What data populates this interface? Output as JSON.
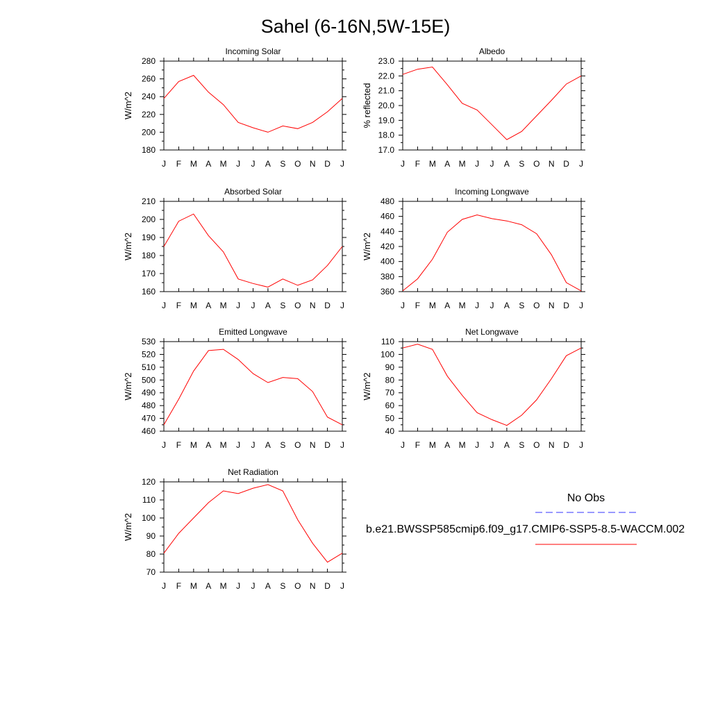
{
  "title": "Sahel (6-16N,5W-15E)",
  "months": [
    "J",
    "F",
    "M",
    "A",
    "M",
    "J",
    "J",
    "A",
    "S",
    "O",
    "N",
    "D",
    "J"
  ],
  "legend": {
    "items": [
      {
        "label": "No Obs",
        "color": "#3333ff",
        "style": "dashed"
      },
      {
        "label": "b.e21.BWSSP585cmip6.f09_g17.CMIP6-SSP5-8.5-WACCM.002",
        "color": "#ff0000",
        "style": "solid"
      }
    ]
  },
  "chart_data": [
    {
      "type": "line",
      "title": "Incoming Solar",
      "ylabel": "W/m^2",
      "x": [
        "J",
        "F",
        "M",
        "A",
        "M",
        "J",
        "J",
        "A",
        "S",
        "O",
        "N",
        "D",
        "J"
      ],
      "ylim": [
        180,
        280
      ],
      "yticks": [
        180,
        200,
        220,
        240,
        260,
        280
      ],
      "yfmt": 0,
      "series": [
        {
          "values": [
            238,
            257,
            264,
            245,
            231,
            211,
            205,
            200,
            207,
            204,
            211,
            223,
            238
          ]
        }
      ]
    },
    {
      "type": "line",
      "title": "Albedo",
      "ylabel": "% reflected",
      "x": [
        "J",
        "F",
        "M",
        "A",
        "M",
        "J",
        "J",
        "A",
        "S",
        "O",
        "N",
        "D",
        "J"
      ],
      "ylim": [
        17.0,
        23.0
      ],
      "yticks": [
        17.0,
        18.0,
        19.0,
        20.0,
        21.0,
        22.0,
        23.0
      ],
      "yfmt": 1,
      "series": [
        {
          "values": [
            22.1,
            22.45,
            22.6,
            21.4,
            20.15,
            19.7,
            18.7,
            17.7,
            18.25,
            19.3,
            20.35,
            21.45,
            22.0
          ]
        }
      ]
    },
    {
      "type": "line",
      "title": "Absorbed Solar",
      "ylabel": "W/m^2",
      "x": [
        "J",
        "F",
        "M",
        "A",
        "M",
        "J",
        "J",
        "A",
        "S",
        "O",
        "N",
        "D",
        "J"
      ],
      "ylim": [
        160,
        210
      ],
      "yticks": [
        160,
        170,
        180,
        190,
        200,
        210
      ],
      "yfmt": 0,
      "series": [
        {
          "values": [
            185,
            199,
            203,
            191,
            182,
            167,
            164.5,
            162.5,
            167,
            163.5,
            166.5,
            174.5,
            185
          ]
        }
      ]
    },
    {
      "type": "line",
      "title": "Incoming Longwave",
      "ylabel": "W/m^2",
      "x": [
        "J",
        "F",
        "M",
        "A",
        "M",
        "J",
        "J",
        "A",
        "S",
        "O",
        "N",
        "D",
        "J"
      ],
      "ylim": [
        360,
        480
      ],
      "yticks": [
        360,
        380,
        400,
        420,
        440,
        460,
        480
      ],
      "yfmt": 0,
      "series": [
        {
          "values": [
            361,
            377,
            403,
            439,
            456,
            462,
            457,
            454,
            449,
            437,
            409,
            372,
            361
          ]
        }
      ]
    },
    {
      "type": "line",
      "title": "Emitted Longwave",
      "ylabel": "W/m^2",
      "x": [
        "J",
        "F",
        "M",
        "A",
        "M",
        "J",
        "J",
        "A",
        "S",
        "O",
        "N",
        "D",
        "J"
      ],
      "ylim": [
        460,
        530
      ],
      "yticks": [
        460,
        470,
        480,
        490,
        500,
        510,
        520,
        530
      ],
      "yfmt": 0,
      "series": [
        {
          "values": [
            465,
            485,
            507,
            523,
            524,
            516,
            505,
            498,
            502,
            501,
            491,
            471,
            465
          ]
        }
      ]
    },
    {
      "type": "line",
      "title": "Net Longwave",
      "ylabel": "W/m^2",
      "x": [
        "J",
        "F",
        "M",
        "A",
        "M",
        "J",
        "J",
        "A",
        "S",
        "O",
        "N",
        "D",
        "J"
      ],
      "ylim": [
        40,
        110
      ],
      "yticks": [
        40,
        50,
        60,
        70,
        80,
        90,
        100,
        110
      ],
      "yfmt": 0,
      "series": [
        {
          "values": [
            105,
            108,
            104,
            83,
            68,
            54.5,
            49,
            44.5,
            52.5,
            64.5,
            81,
            99,
            105
          ]
        }
      ]
    },
    {
      "type": "line",
      "title": "Net Radiation",
      "ylabel": "W/m^2",
      "x": [
        "J",
        "F",
        "M",
        "A",
        "M",
        "J",
        "J",
        "A",
        "S",
        "O",
        "N",
        "D",
        "J"
      ],
      "ylim": [
        70,
        120
      ],
      "yticks": [
        70,
        80,
        90,
        100,
        110,
        120
      ],
      "yfmt": 0,
      "series": [
        {
          "values": [
            80.5,
            91.5,
            100,
            108.5,
            115,
            113.5,
            116.5,
            118.5,
            115,
            99,
            86,
            75.5,
            80.5
          ]
        }
      ]
    }
  ]
}
